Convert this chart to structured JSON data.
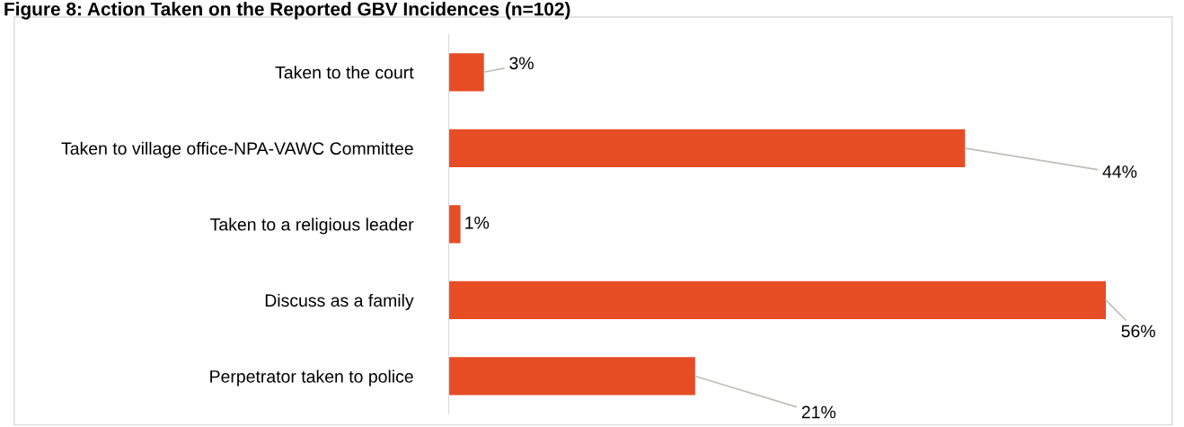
{
  "chart_data": {
    "type": "bar",
    "orientation": "horizontal",
    "title": "Figure 8: Action Taken on the Reported GBV Incidences (n=102)",
    "categories": [
      "Taken to the court",
      "Taken to village office-NPA-VAWC Committee",
      "Taken to a religious leader",
      "Discuss as a family",
      "Perpetrator taken to police"
    ],
    "values": [
      3,
      44,
      1,
      56,
      21
    ],
    "value_labels": [
      "3%",
      "44%",
      "1%",
      "56%",
      "21%"
    ],
    "color": "#e64d24",
    "grid": false,
    "legend": false
  }
}
